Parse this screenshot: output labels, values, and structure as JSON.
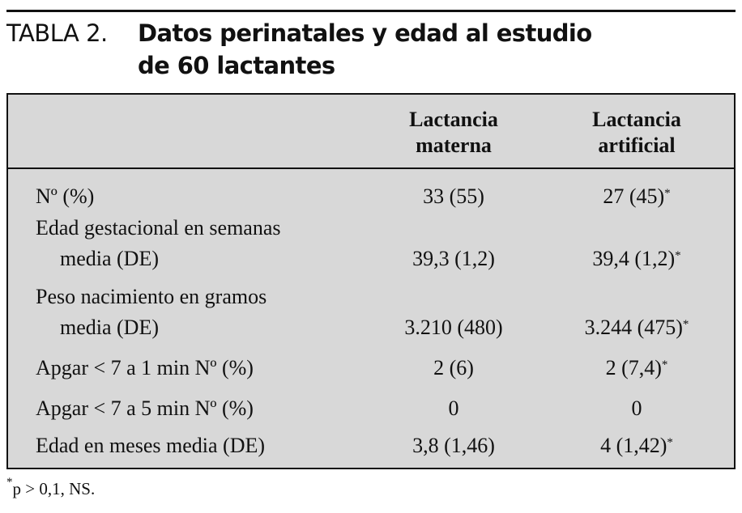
{
  "header": {
    "label": "TABLA 2.",
    "title_lines": [
      "Datos perinatales y edad al estudio",
      "de 60 lactantes"
    ]
  },
  "table": {
    "columns": [
      "",
      "Lactancia materna",
      "Lactancia artificial"
    ],
    "rows": [
      {
        "label": [
          "Nº (%)"
        ],
        "cells": [
          {
            "value": "33 (55)"
          },
          {
            "value": "27 (45)",
            "mark": "*"
          }
        ]
      },
      {
        "label": [
          "Edad gestacional en semanas",
          "media (DE)"
        ],
        "cells": [
          {
            "value": "39,3 (1,2)"
          },
          {
            "value": "39,4 (1,2)",
            "mark": "*"
          }
        ]
      },
      {
        "label": [
          "Peso nacimiento en gramos",
          "media (DE)"
        ],
        "cells": [
          {
            "value": "3.210 (480)"
          },
          {
            "value": "3.244 (475)",
            "mark": "*"
          }
        ]
      },
      {
        "label": [
          "Apgar < 7 a 1 min Nº (%)"
        ],
        "cells": [
          {
            "value": "2 (6)"
          },
          {
            "value": "2 (7,4)",
            "mark": "*"
          }
        ]
      },
      {
        "label": [
          "Apgar < 7 a 5 min Nº (%)"
        ],
        "cells": [
          {
            "value": "0"
          },
          {
            "value": "0"
          }
        ]
      },
      {
        "label": [
          "Edad en meses media (DE)"
        ],
        "cells": [
          {
            "value": "3,8 (1,46)"
          },
          {
            "value": "4 (1,42)",
            "mark": "*"
          }
        ]
      }
    ]
  },
  "footnote": {
    "mark": "*",
    "text": "p > 0,1, NS."
  }
}
